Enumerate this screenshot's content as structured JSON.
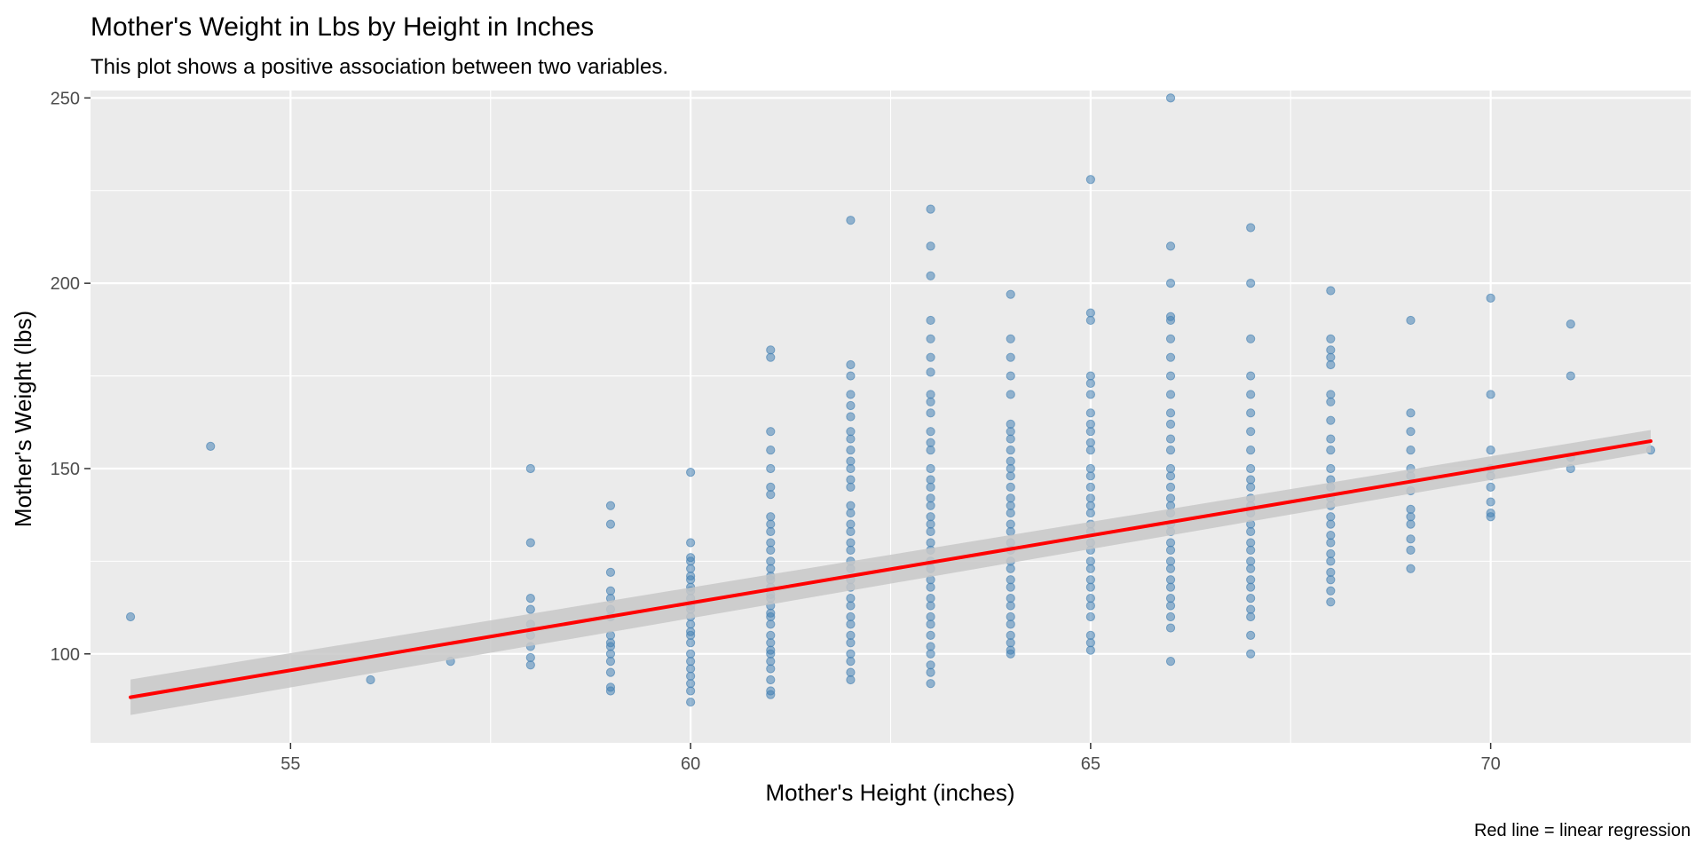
{
  "chart_data": {
    "type": "scatter",
    "title": "Mother's Weight in Lbs by Height in Inches",
    "subtitle": "This plot shows a positive association between two variables.",
    "xlabel": "Mother's Height (inches)",
    "ylabel": "Mother's Weight (lbs)",
    "caption": "Red line = linear regression",
    "xlim": [
      52.5,
      72.5
    ],
    "ylim": [
      76,
      252
    ],
    "x_ticks": [
      55,
      60,
      65,
      70
    ],
    "y_ticks": [
      100,
      150,
      200,
      250
    ],
    "grid": true,
    "colors": {
      "panel_background": "#ebebeb",
      "grid": "#ffffff",
      "points": "#4682b4",
      "regression_line": "#ff0000",
      "confidence_band": "#c8c8c8"
    },
    "regression": {
      "method": "linear",
      "x": [
        53,
        72
      ],
      "y": [
        88.3,
        157.4
      ],
      "ci_lower": [
        83.5,
        154.4
      ],
      "ci_upper": [
        93.1,
        160.4
      ]
    },
    "points": [
      {
        "x": 53,
        "y": 110
      },
      {
        "x": 54,
        "y": 156
      },
      {
        "x": 56,
        "y": 93
      },
      {
        "x": 57,
        "y": 98
      },
      {
        "x": 58,
        "y": 150
      },
      {
        "x": 58,
        "y": 130
      },
      {
        "x": 58,
        "y": 115
      },
      {
        "x": 58,
        "y": 112
      },
      {
        "x": 58,
        "y": 108
      },
      {
        "x": 58,
        "y": 105
      },
      {
        "x": 58,
        "y": 102
      },
      {
        "x": 58,
        "y": 99
      },
      {
        "x": 58,
        "y": 97
      },
      {
        "x": 59,
        "y": 140
      },
      {
        "x": 59,
        "y": 135
      },
      {
        "x": 59,
        "y": 122
      },
      {
        "x": 59,
        "y": 117
      },
      {
        "x": 59,
        "y": 115
      },
      {
        "x": 59,
        "y": 112
      },
      {
        "x": 59,
        "y": 110
      },
      {
        "x": 59,
        "y": 105
      },
      {
        "x": 59,
        "y": 103
      },
      {
        "x": 59,
        "y": 102
      },
      {
        "x": 59,
        "y": 100
      },
      {
        "x": 59,
        "y": 98
      },
      {
        "x": 59,
        "y": 95
      },
      {
        "x": 59,
        "y": 91
      },
      {
        "x": 59,
        "y": 90
      },
      {
        "x": 60,
        "y": 149
      },
      {
        "x": 60,
        "y": 130
      },
      {
        "x": 60,
        "y": 126
      },
      {
        "x": 60,
        "y": 125
      },
      {
        "x": 60,
        "y": 123
      },
      {
        "x": 60,
        "y": 121
      },
      {
        "x": 60,
        "y": 120
      },
      {
        "x": 60,
        "y": 118
      },
      {
        "x": 60,
        "y": 117
      },
      {
        "x": 60,
        "y": 115
      },
      {
        "x": 60,
        "y": 113
      },
      {
        "x": 60,
        "y": 112
      },
      {
        "x": 60,
        "y": 110
      },
      {
        "x": 60,
        "y": 108
      },
      {
        "x": 60,
        "y": 106
      },
      {
        "x": 60,
        "y": 105
      },
      {
        "x": 60,
        "y": 103
      },
      {
        "x": 60,
        "y": 100
      },
      {
        "x": 60,
        "y": 98
      },
      {
        "x": 60,
        "y": 96
      },
      {
        "x": 60,
        "y": 94
      },
      {
        "x": 60,
        "y": 92
      },
      {
        "x": 60,
        "y": 90
      },
      {
        "x": 60,
        "y": 87
      },
      {
        "x": 61,
        "y": 182
      },
      {
        "x": 61,
        "y": 180
      },
      {
        "x": 61,
        "y": 160
      },
      {
        "x": 61,
        "y": 155
      },
      {
        "x": 61,
        "y": 150
      },
      {
        "x": 61,
        "y": 145
      },
      {
        "x": 61,
        "y": 143
      },
      {
        "x": 61,
        "y": 137
      },
      {
        "x": 61,
        "y": 135
      },
      {
        "x": 61,
        "y": 133
      },
      {
        "x": 61,
        "y": 130
      },
      {
        "x": 61,
        "y": 128
      },
      {
        "x": 61,
        "y": 125
      },
      {
        "x": 61,
        "y": 123
      },
      {
        "x": 61,
        "y": 121
      },
      {
        "x": 61,
        "y": 120
      },
      {
        "x": 61,
        "y": 118
      },
      {
        "x": 61,
        "y": 116
      },
      {
        "x": 61,
        "y": 115
      },
      {
        "x": 61,
        "y": 113
      },
      {
        "x": 61,
        "y": 111
      },
      {
        "x": 61,
        "y": 110
      },
      {
        "x": 61,
        "y": 108
      },
      {
        "x": 61,
        "y": 105
      },
      {
        "x": 61,
        "y": 103
      },
      {
        "x": 61,
        "y": 101
      },
      {
        "x": 61,
        "y": 100
      },
      {
        "x": 61,
        "y": 98
      },
      {
        "x": 61,
        "y": 96
      },
      {
        "x": 61,
        "y": 93
      },
      {
        "x": 61,
        "y": 90
      },
      {
        "x": 61,
        "y": 89
      },
      {
        "x": 62,
        "y": 217
      },
      {
        "x": 62,
        "y": 178
      },
      {
        "x": 62,
        "y": 175
      },
      {
        "x": 62,
        "y": 170
      },
      {
        "x": 62,
        "y": 167
      },
      {
        "x": 62,
        "y": 164
      },
      {
        "x": 62,
        "y": 160
      },
      {
        "x": 62,
        "y": 158
      },
      {
        "x": 62,
        "y": 155
      },
      {
        "x": 62,
        "y": 152
      },
      {
        "x": 62,
        "y": 150
      },
      {
        "x": 62,
        "y": 147
      },
      {
        "x": 62,
        "y": 145
      },
      {
        "x": 62,
        "y": 140
      },
      {
        "x": 62,
        "y": 138
      },
      {
        "x": 62,
        "y": 135
      },
      {
        "x": 62,
        "y": 133
      },
      {
        "x": 62,
        "y": 130
      },
      {
        "x": 62,
        "y": 128
      },
      {
        "x": 62,
        "y": 125
      },
      {
        "x": 62,
        "y": 123
      },
      {
        "x": 62,
        "y": 120
      },
      {
        "x": 62,
        "y": 118
      },
      {
        "x": 62,
        "y": 115
      },
      {
        "x": 62,
        "y": 113
      },
      {
        "x": 62,
        "y": 110
      },
      {
        "x": 62,
        "y": 108
      },
      {
        "x": 62,
        "y": 105
      },
      {
        "x": 62,
        "y": 103
      },
      {
        "x": 62,
        "y": 100
      },
      {
        "x": 62,
        "y": 98
      },
      {
        "x": 62,
        "y": 95
      },
      {
        "x": 62,
        "y": 93
      },
      {
        "x": 63,
        "y": 220
      },
      {
        "x": 63,
        "y": 210
      },
      {
        "x": 63,
        "y": 202
      },
      {
        "x": 63,
        "y": 190
      },
      {
        "x": 63,
        "y": 185
      },
      {
        "x": 63,
        "y": 180
      },
      {
        "x": 63,
        "y": 176
      },
      {
        "x": 63,
        "y": 170
      },
      {
        "x": 63,
        "y": 168
      },
      {
        "x": 63,
        "y": 165
      },
      {
        "x": 63,
        "y": 160
      },
      {
        "x": 63,
        "y": 157
      },
      {
        "x": 63,
        "y": 155
      },
      {
        "x": 63,
        "y": 150
      },
      {
        "x": 63,
        "y": 147
      },
      {
        "x": 63,
        "y": 145
      },
      {
        "x": 63,
        "y": 142
      },
      {
        "x": 63,
        "y": 140
      },
      {
        "x": 63,
        "y": 137
      },
      {
        "x": 63,
        "y": 135
      },
      {
        "x": 63,
        "y": 133
      },
      {
        "x": 63,
        "y": 130
      },
      {
        "x": 63,
        "y": 128
      },
      {
        "x": 63,
        "y": 125
      },
      {
        "x": 63,
        "y": 123
      },
      {
        "x": 63,
        "y": 120
      },
      {
        "x": 63,
        "y": 118
      },
      {
        "x": 63,
        "y": 115
      },
      {
        "x": 63,
        "y": 113
      },
      {
        "x": 63,
        "y": 110
      },
      {
        "x": 63,
        "y": 108
      },
      {
        "x": 63,
        "y": 105
      },
      {
        "x": 63,
        "y": 102
      },
      {
        "x": 63,
        "y": 100
      },
      {
        "x": 63,
        "y": 97
      },
      {
        "x": 63,
        "y": 95
      },
      {
        "x": 63,
        "y": 92
      },
      {
        "x": 64,
        "y": 197
      },
      {
        "x": 64,
        "y": 185
      },
      {
        "x": 64,
        "y": 180
      },
      {
        "x": 64,
        "y": 175
      },
      {
        "x": 64,
        "y": 170
      },
      {
        "x": 64,
        "y": 162
      },
      {
        "x": 64,
        "y": 160
      },
      {
        "x": 64,
        "y": 158
      },
      {
        "x": 64,
        "y": 155
      },
      {
        "x": 64,
        "y": 152
      },
      {
        "x": 64,
        "y": 150
      },
      {
        "x": 64,
        "y": 148
      },
      {
        "x": 64,
        "y": 145
      },
      {
        "x": 64,
        "y": 142
      },
      {
        "x": 64,
        "y": 140
      },
      {
        "x": 64,
        "y": 138
      },
      {
        "x": 64,
        "y": 135
      },
      {
        "x": 64,
        "y": 133
      },
      {
        "x": 64,
        "y": 130
      },
      {
        "x": 64,
        "y": 128
      },
      {
        "x": 64,
        "y": 125
      },
      {
        "x": 64,
        "y": 123
      },
      {
        "x": 64,
        "y": 120
      },
      {
        "x": 64,
        "y": 118
      },
      {
        "x": 64,
        "y": 115
      },
      {
        "x": 64,
        "y": 113
      },
      {
        "x": 64,
        "y": 110
      },
      {
        "x": 64,
        "y": 108
      },
      {
        "x": 64,
        "y": 105
      },
      {
        "x": 64,
        "y": 103
      },
      {
        "x": 64,
        "y": 101
      },
      {
        "x": 64,
        "y": 100
      },
      {
        "x": 65,
        "y": 228
      },
      {
        "x": 65,
        "y": 192
      },
      {
        "x": 65,
        "y": 190
      },
      {
        "x": 65,
        "y": 175
      },
      {
        "x": 65,
        "y": 173
      },
      {
        "x": 65,
        "y": 170
      },
      {
        "x": 65,
        "y": 165
      },
      {
        "x": 65,
        "y": 162
      },
      {
        "x": 65,
        "y": 160
      },
      {
        "x": 65,
        "y": 157
      },
      {
        "x": 65,
        "y": 155
      },
      {
        "x": 65,
        "y": 150
      },
      {
        "x": 65,
        "y": 148
      },
      {
        "x": 65,
        "y": 145
      },
      {
        "x": 65,
        "y": 142
      },
      {
        "x": 65,
        "y": 140
      },
      {
        "x": 65,
        "y": 138
      },
      {
        "x": 65,
        "y": 135
      },
      {
        "x": 65,
        "y": 133
      },
      {
        "x": 65,
        "y": 130
      },
      {
        "x": 65,
        "y": 128
      },
      {
        "x": 65,
        "y": 125
      },
      {
        "x": 65,
        "y": 123
      },
      {
        "x": 65,
        "y": 120
      },
      {
        "x": 65,
        "y": 118
      },
      {
        "x": 65,
        "y": 115
      },
      {
        "x": 65,
        "y": 113
      },
      {
        "x": 65,
        "y": 110
      },
      {
        "x": 65,
        "y": 105
      },
      {
        "x": 65,
        "y": 103
      },
      {
        "x": 65,
        "y": 101
      },
      {
        "x": 66,
        "y": 250
      },
      {
        "x": 66,
        "y": 210
      },
      {
        "x": 66,
        "y": 200
      },
      {
        "x": 66,
        "y": 191
      },
      {
        "x": 66,
        "y": 190
      },
      {
        "x": 66,
        "y": 185
      },
      {
        "x": 66,
        "y": 180
      },
      {
        "x": 66,
        "y": 175
      },
      {
        "x": 66,
        "y": 170
      },
      {
        "x": 66,
        "y": 165
      },
      {
        "x": 66,
        "y": 162
      },
      {
        "x": 66,
        "y": 158
      },
      {
        "x": 66,
        "y": 155
      },
      {
        "x": 66,
        "y": 150
      },
      {
        "x": 66,
        "y": 148
      },
      {
        "x": 66,
        "y": 145
      },
      {
        "x": 66,
        "y": 142
      },
      {
        "x": 66,
        "y": 140
      },
      {
        "x": 66,
        "y": 138
      },
      {
        "x": 66,
        "y": 135
      },
      {
        "x": 66,
        "y": 133
      },
      {
        "x": 66,
        "y": 130
      },
      {
        "x": 66,
        "y": 128
      },
      {
        "x": 66,
        "y": 125
      },
      {
        "x": 66,
        "y": 123
      },
      {
        "x": 66,
        "y": 120
      },
      {
        "x": 66,
        "y": 118
      },
      {
        "x": 66,
        "y": 115
      },
      {
        "x": 66,
        "y": 113
      },
      {
        "x": 66,
        "y": 110
      },
      {
        "x": 66,
        "y": 107
      },
      {
        "x": 66,
        "y": 98
      },
      {
        "x": 67,
        "y": 215
      },
      {
        "x": 67,
        "y": 200
      },
      {
        "x": 67,
        "y": 185
      },
      {
        "x": 67,
        "y": 175
      },
      {
        "x": 67,
        "y": 170
      },
      {
        "x": 67,
        "y": 165
      },
      {
        "x": 67,
        "y": 160
      },
      {
        "x": 67,
        "y": 155
      },
      {
        "x": 67,
        "y": 150
      },
      {
        "x": 67,
        "y": 147
      },
      {
        "x": 67,
        "y": 145
      },
      {
        "x": 67,
        "y": 142
      },
      {
        "x": 67,
        "y": 140
      },
      {
        "x": 67,
        "y": 138
      },
      {
        "x": 67,
        "y": 135
      },
      {
        "x": 67,
        "y": 133
      },
      {
        "x": 67,
        "y": 130
      },
      {
        "x": 67,
        "y": 128
      },
      {
        "x": 67,
        "y": 125
      },
      {
        "x": 67,
        "y": 123
      },
      {
        "x": 67,
        "y": 120
      },
      {
        "x": 67,
        "y": 118
      },
      {
        "x": 67,
        "y": 115
      },
      {
        "x": 67,
        "y": 112
      },
      {
        "x": 67,
        "y": 110
      },
      {
        "x": 67,
        "y": 105
      },
      {
        "x": 67,
        "y": 100
      },
      {
        "x": 68,
        "y": 198
      },
      {
        "x": 68,
        "y": 185
      },
      {
        "x": 68,
        "y": 182
      },
      {
        "x": 68,
        "y": 180
      },
      {
        "x": 68,
        "y": 178
      },
      {
        "x": 68,
        "y": 170
      },
      {
        "x": 68,
        "y": 168
      },
      {
        "x": 68,
        "y": 163
      },
      {
        "x": 68,
        "y": 158
      },
      {
        "x": 68,
        "y": 155
      },
      {
        "x": 68,
        "y": 150
      },
      {
        "x": 68,
        "y": 147
      },
      {
        "x": 68,
        "y": 145
      },
      {
        "x": 68,
        "y": 142
      },
      {
        "x": 68,
        "y": 140
      },
      {
        "x": 68,
        "y": 137
      },
      {
        "x": 68,
        "y": 135
      },
      {
        "x": 68,
        "y": 132
      },
      {
        "x": 68,
        "y": 130
      },
      {
        "x": 68,
        "y": 127
      },
      {
        "x": 68,
        "y": 125
      },
      {
        "x": 68,
        "y": 122
      },
      {
        "x": 68,
        "y": 120
      },
      {
        "x": 68,
        "y": 117
      },
      {
        "x": 68,
        "y": 114
      },
      {
        "x": 69,
        "y": 190
      },
      {
        "x": 69,
        "y": 165
      },
      {
        "x": 69,
        "y": 160
      },
      {
        "x": 69,
        "y": 155
      },
      {
        "x": 69,
        "y": 150
      },
      {
        "x": 69,
        "y": 148
      },
      {
        "x": 69,
        "y": 144
      },
      {
        "x": 69,
        "y": 139
      },
      {
        "x": 69,
        "y": 137
      },
      {
        "x": 69,
        "y": 135
      },
      {
        "x": 69,
        "y": 131
      },
      {
        "x": 69,
        "y": 128
      },
      {
        "x": 69,
        "y": 123
      },
      {
        "x": 70,
        "y": 196
      },
      {
        "x": 70,
        "y": 170
      },
      {
        "x": 70,
        "y": 155
      },
      {
        "x": 70,
        "y": 150
      },
      {
        "x": 70,
        "y": 148
      },
      {
        "x": 70,
        "y": 145
      },
      {
        "x": 70,
        "y": 141
      },
      {
        "x": 70,
        "y": 138
      },
      {
        "x": 70,
        "y": 137
      },
      {
        "x": 71,
        "y": 189
      },
      {
        "x": 71,
        "y": 175
      },
      {
        "x": 71,
        "y": 153
      },
      {
        "x": 71,
        "y": 150
      },
      {
        "x": 72,
        "y": 155
      }
    ]
  }
}
